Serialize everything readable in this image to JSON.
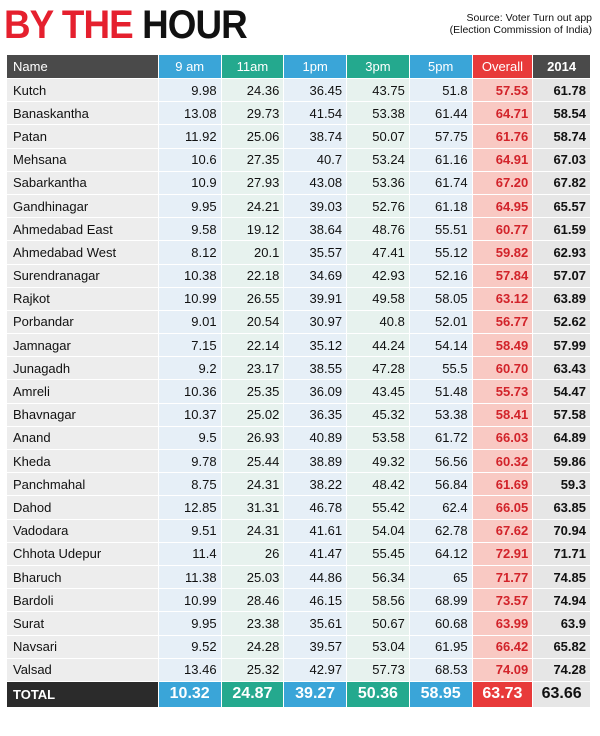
{
  "header": {
    "title_part1": "BY THE",
    "title_part2": "HOUR",
    "source_line1": "Source: Voter Turn out app",
    "source_line2": "(Election Commission of India)"
  },
  "columns": [
    "Name",
    "9 am",
    "11am",
    "1pm",
    "3pm",
    "5pm",
    "Overall",
    "2014"
  ],
  "rows": [
    [
      "Kutch",
      "9.98",
      "24.36",
      "36.45",
      "43.75",
      "51.8",
      "57.53",
      "61.78"
    ],
    [
      "Banaskantha",
      "13.08",
      "29.73",
      "41.54",
      "53.38",
      "61.44",
      "64.71",
      "58.54"
    ],
    [
      "Patan",
      "11.92",
      "25.06",
      "38.74",
      "50.07",
      "57.75",
      "61.76",
      "58.74"
    ],
    [
      "Mehsana",
      "10.6",
      "27.35",
      "40.7",
      "53.24",
      "61.16",
      "64.91",
      "67.03"
    ],
    [
      "Sabarkantha",
      "10.9",
      "27.93",
      "43.08",
      "53.36",
      "61.74",
      "67.20",
      "67.82"
    ],
    [
      "Gandhinagar",
      "9.95",
      "24.21",
      "39.03",
      "52.76",
      "61.18",
      "64.95",
      "65.57"
    ],
    [
      "Ahmedabad East",
      "9.58",
      "19.12",
      "38.64",
      "48.76",
      "55.51",
      "60.77",
      "61.59"
    ],
    [
      "Ahmedabad West",
      "8.12",
      "20.1",
      "35.57",
      "47.41",
      "55.12",
      "59.82",
      "62.93"
    ],
    [
      "Surendranagar",
      "10.38",
      "22.18",
      "34.69",
      "42.93",
      "52.16",
      "57.84",
      "57.07"
    ],
    [
      "Rajkot",
      "10.99",
      "26.55",
      "39.91",
      "49.58",
      "58.05",
      "63.12",
      "63.89"
    ],
    [
      "Porbandar",
      "9.01",
      "20.54",
      "30.97",
      "40.8",
      "52.01",
      "56.77",
      "52.62"
    ],
    [
      "Jamnagar",
      "7.15",
      "22.14",
      "35.12",
      "44.24",
      "54.14",
      "58.49",
      "57.99"
    ],
    [
      "Junagadh",
      "9.2",
      "23.17",
      "38.55",
      "47.28",
      "55.5",
      "60.70",
      "63.43"
    ],
    [
      "Amreli",
      "10.36",
      "25.35",
      "36.09",
      "43.45",
      "51.48",
      "55.73",
      "54.47"
    ],
    [
      "Bhavnagar",
      "10.37",
      "25.02",
      "36.35",
      "45.32",
      "53.38",
      "58.41",
      "57.58"
    ],
    [
      "Anand",
      "9.5",
      "26.93",
      "40.89",
      "53.58",
      "61.72",
      "66.03",
      "64.89"
    ],
    [
      "Kheda",
      "9.78",
      "25.44",
      "38.89",
      "49.32",
      "56.56",
      "60.32",
      "59.86"
    ],
    [
      "Panchmahal",
      "8.75",
      "24.31",
      "38.22",
      "48.42",
      "56.84",
      "61.69",
      "59.3"
    ],
    [
      "Dahod",
      "12.85",
      "31.31",
      "46.78",
      "55.42",
      "62.4",
      "66.05",
      "63.85"
    ],
    [
      "Vadodara",
      "9.51",
      "24.31",
      "41.61",
      "54.04",
      "62.78",
      "67.62",
      "70.94"
    ],
    [
      "Chhota Udepur",
      "11.4",
      "26",
      "41.47",
      "55.45",
      "64.12",
      "72.91",
      "71.71"
    ],
    [
      "Bharuch",
      "11.38",
      "25.03",
      "44.86",
      "56.34",
      "65",
      "71.77",
      "74.85"
    ],
    [
      "Bardoli",
      "10.99",
      "28.46",
      "46.15",
      "58.56",
      "68.99",
      "73.57",
      "74.94"
    ],
    [
      "Surat",
      "9.95",
      "23.38",
      "35.61",
      "50.67",
      "60.68",
      "63.99",
      "63.9"
    ],
    [
      "Navsari",
      "9.52",
      "24.28",
      "39.57",
      "53.04",
      "61.95",
      "66.42",
      "65.82"
    ],
    [
      "Valsad",
      "13.46",
      "25.32",
      "42.97",
      "57.73",
      "68.53",
      "74.09",
      "74.28"
    ]
  ],
  "total": [
    "TOTAL",
    "10.32",
    "24.87",
    "39.27",
    "50.36",
    "58.95",
    "63.73",
    "63.66"
  ],
  "colors": {
    "title_red": "#e5202e",
    "blue": "#3aa5d8",
    "green": "#24a98e",
    "overall_red": "#e83a3a",
    "dark": "#4a4a4a"
  }
}
